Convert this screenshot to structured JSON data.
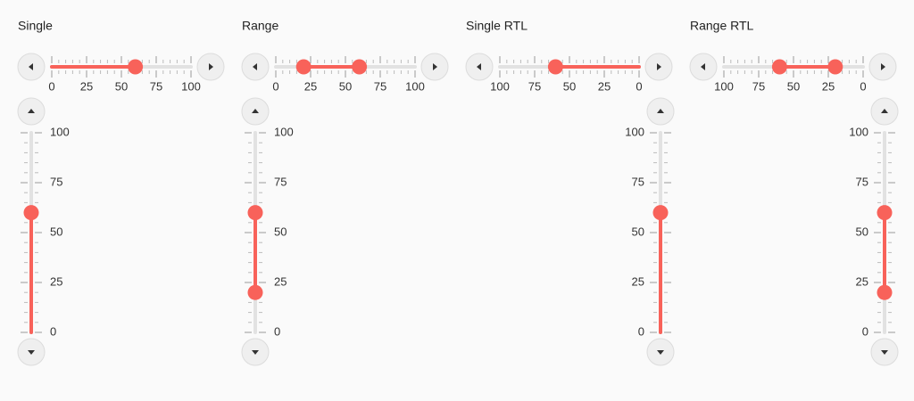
{
  "minor_tick_step": 5,
  "accent_color": "#f8625a",
  "panels": [
    {
      "title": "Single",
      "direction": "ltr",
      "horizontal": {
        "lim": [
          0,
          100
        ],
        "ticks": [
          0,
          25,
          50,
          75,
          100
        ],
        "values": [
          60
        ]
      },
      "vertical": {
        "lim": [
          0,
          100
        ],
        "ticks": [
          0,
          25,
          50,
          75,
          100
        ],
        "values": [
          60
        ]
      }
    },
    {
      "title": "Range",
      "direction": "ltr",
      "horizontal": {
        "lim": [
          0,
          100
        ],
        "ticks": [
          0,
          25,
          50,
          75,
          100
        ],
        "values": [
          20,
          60
        ]
      },
      "vertical": {
        "lim": [
          0,
          100
        ],
        "ticks": [
          0,
          25,
          50,
          75,
          100
        ],
        "values": [
          20,
          60
        ]
      }
    },
    {
      "title": "Single RTL",
      "direction": "rtl",
      "horizontal": {
        "lim": [
          0,
          100
        ],
        "ticks": [
          0,
          25,
          50,
          75,
          100
        ],
        "values": [
          60
        ]
      },
      "vertical": {
        "lim": [
          0,
          100
        ],
        "ticks": [
          0,
          25,
          50,
          75,
          100
        ],
        "values": [
          60
        ]
      }
    },
    {
      "title": "Range RTL",
      "direction": "rtl",
      "horizontal": {
        "lim": [
          0,
          100
        ],
        "ticks": [
          0,
          25,
          50,
          75,
          100
        ],
        "values": [
          20,
          60
        ]
      },
      "vertical": {
        "lim": [
          0,
          100
        ],
        "ticks": [
          0,
          25,
          50,
          75,
          100
        ],
        "values": [
          20,
          60
        ]
      }
    }
  ]
}
